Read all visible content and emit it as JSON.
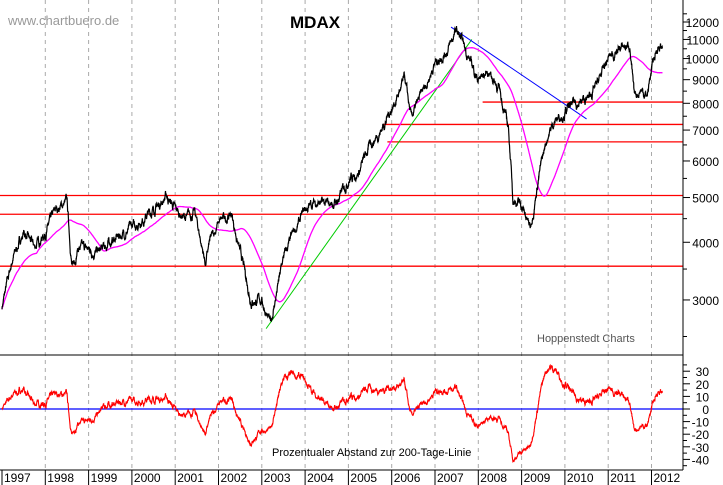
{
  "watermark": "www.chartbuero.de",
  "source_label": "Hoppenstedt Charts",
  "chart_data": [
    {
      "type": "line",
      "title": "MDAX",
      "yscale": "log",
      "ylim": [
        2300,
        12600
      ],
      "yticks": [
        3000,
        4000,
        5000,
        6000,
        7000,
        8000,
        9000,
        10000,
        11000,
        12000
      ],
      "xticks": [
        "1997",
        "1998",
        "1999",
        "2000",
        "2001",
        "2002",
        "2003",
        "2004",
        "2005",
        "2006",
        "2007",
        "2008",
        "2009",
        "2010",
        "2011",
        "2012"
      ],
      "grid": "vertical dashed at year boundaries",
      "series": [
        {
          "role": "price",
          "color": "#000000",
          "x": [
            1997.0,
            1997.25,
            1997.5,
            1997.75,
            1998.0,
            1998.25,
            1998.5,
            1998.62,
            1998.75,
            1999.0,
            1999.25,
            1999.5,
            2000.0,
            2000.25,
            2000.6,
            2000.8,
            2001.0,
            2001.25,
            2001.45,
            2001.7,
            2001.8,
            2002.0,
            2002.3,
            2002.5,
            2002.75,
            2003.0,
            2003.2,
            2003.5,
            2003.75,
            2004.0,
            2004.25,
            2004.5,
            2004.75,
            2005.0,
            2005.25,
            2005.5,
            2005.75,
            2006.0,
            2006.3,
            2006.45,
            2006.75,
            2007.0,
            2007.3,
            2007.5,
            2007.75,
            2008.0,
            2008.25,
            2008.5,
            2008.7,
            2008.8,
            2009.0,
            2009.2,
            2009.4,
            2009.6,
            2009.75,
            2010.0,
            2010.25,
            2010.5,
            2010.75,
            2011.0,
            2011.25,
            2011.5,
            2011.6,
            2011.75,
            2011.9,
            2012.0,
            2012.15,
            2012.25
          ],
          "y": [
            2900,
            3700,
            4200,
            3900,
            4200,
            4700,
            4900,
            3500,
            3900,
            3850,
            3800,
            4000,
            4300,
            4500,
            4800,
            5050,
            4700,
            4500,
            4650,
            3600,
            4000,
            4400,
            4600,
            3800,
            3000,
            3000,
            2650,
            3700,
            4200,
            4700,
            4900,
            4800,
            4900,
            5500,
            5700,
            6500,
            7000,
            7800,
            9000,
            7400,
            8600,
            9800,
            10500,
            11500,
            10200,
            9000,
            9400,
            8500,
            7000,
            5000,
            4800,
            4300,
            5600,
            6800,
            7300,
            7700,
            8000,
            8100,
            8800,
            10000,
            10500,
            10700,
            8200,
            8600,
            8300,
            9500,
            10700,
            10500
          ]
        },
        {
          "role": "200-day moving average",
          "color": "#ff00ff"
        }
      ],
      "horizontal_lines": [
        {
          "value": 8050,
          "color": "#ff0000",
          "from": 2008.1
        },
        {
          "value": 7200,
          "color": "#ff0000",
          "from": 2005.8
        },
        {
          "value": 6600,
          "color": "#ff0000",
          "from": 2005.9
        },
        {
          "value": 5050,
          "color": "#ff0000"
        },
        {
          "value": 4600,
          "color": "#ff0000"
        },
        {
          "value": 3550,
          "color": "#ff0000"
        }
      ],
      "trend_lines": [
        {
          "color": "#00cc00",
          "from": [
            2003.1,
            2600
          ],
          "to": [
            2007.85,
            11000
          ]
        },
        {
          "color": "#0000ff",
          "from": [
            2007.37,
            11700
          ],
          "to": [
            2010.5,
            7400
          ]
        }
      ]
    },
    {
      "type": "line",
      "title": "Prozentualer Abstand zur 200-Tage-Linie",
      "ylim": [
        -47,
        37
      ],
      "yticks": [
        30,
        20,
        10,
        0,
        -10,
        -20,
        -30,
        -40
      ],
      "zero_line_color": "#0000ff",
      "series_color": "#ff0000"
    }
  ]
}
